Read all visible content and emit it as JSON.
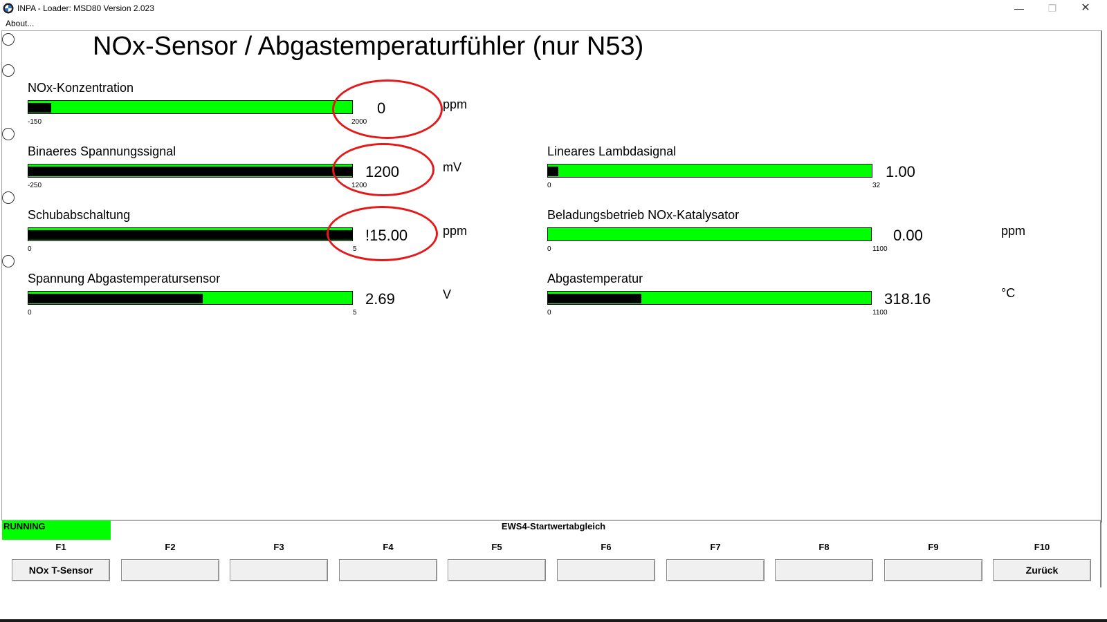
{
  "window": {
    "title": "INPA - Loader:  MSD80 Version 2.023",
    "menu_about": "About..."
  },
  "page_title": "NOx-Sensor / Abgastemperaturfühler (nur N53)",
  "gauges": {
    "nox": {
      "label": "NOx-Konzentration",
      "min": "-150",
      "max": "2000",
      "value": "0",
      "unit": "ppm",
      "fill": 0.07
    },
    "binaer": {
      "label": "Binaeres Spannungssignal",
      "min": "-250",
      "max": "1200",
      "value": "1200",
      "unit": "mV",
      "fill": 1.0
    },
    "schub": {
      "label": "Schubabschaltung",
      "min": "0",
      "max": "5",
      "value": "!15.00",
      "unit": "ppm",
      "fill": 1.0
    },
    "spannung": {
      "label": "Spannung Abgastemperatursensor",
      "min": "0",
      "max": "5",
      "value": "2.69",
      "unit": "V",
      "fill": 0.538
    },
    "lambda": {
      "label": "Lineares Lambdasignal",
      "min": "0",
      "max": "32",
      "value": "1.00",
      "unit": "",
      "fill": 0.031
    },
    "beladung": {
      "label": "Beladungsbetrieb NOx-Katalysator",
      "min": "0",
      "max": "1100",
      "value": "0.00",
      "unit": "ppm",
      "fill": 0.0
    },
    "abgas": {
      "label": "Abgastemperatur",
      "min": "0",
      "max": "1100",
      "value": "318.16",
      "unit": "°C",
      "fill": 0.289
    }
  },
  "status": {
    "running": "RUNNING",
    "ews": "EWS4-Startwertabgleich"
  },
  "fkeys": [
    {
      "key": "F1",
      "label": "NOx T-Sensor"
    },
    {
      "key": "F2",
      "label": ""
    },
    {
      "key": "F3",
      "label": ""
    },
    {
      "key": "F4",
      "label": ""
    },
    {
      "key": "F5",
      "label": ""
    },
    {
      "key": "F6",
      "label": ""
    },
    {
      "key": "F7",
      "label": ""
    },
    {
      "key": "F8",
      "label": ""
    },
    {
      "key": "F9",
      "label": ""
    },
    {
      "key": "F10",
      "label": "Zurück"
    }
  ],
  "colors": {
    "bar_green": "#00ff00",
    "bar_fill": "#000000",
    "highlight_circle": "#e31a1a",
    "running_bg": "#00ff00"
  }
}
